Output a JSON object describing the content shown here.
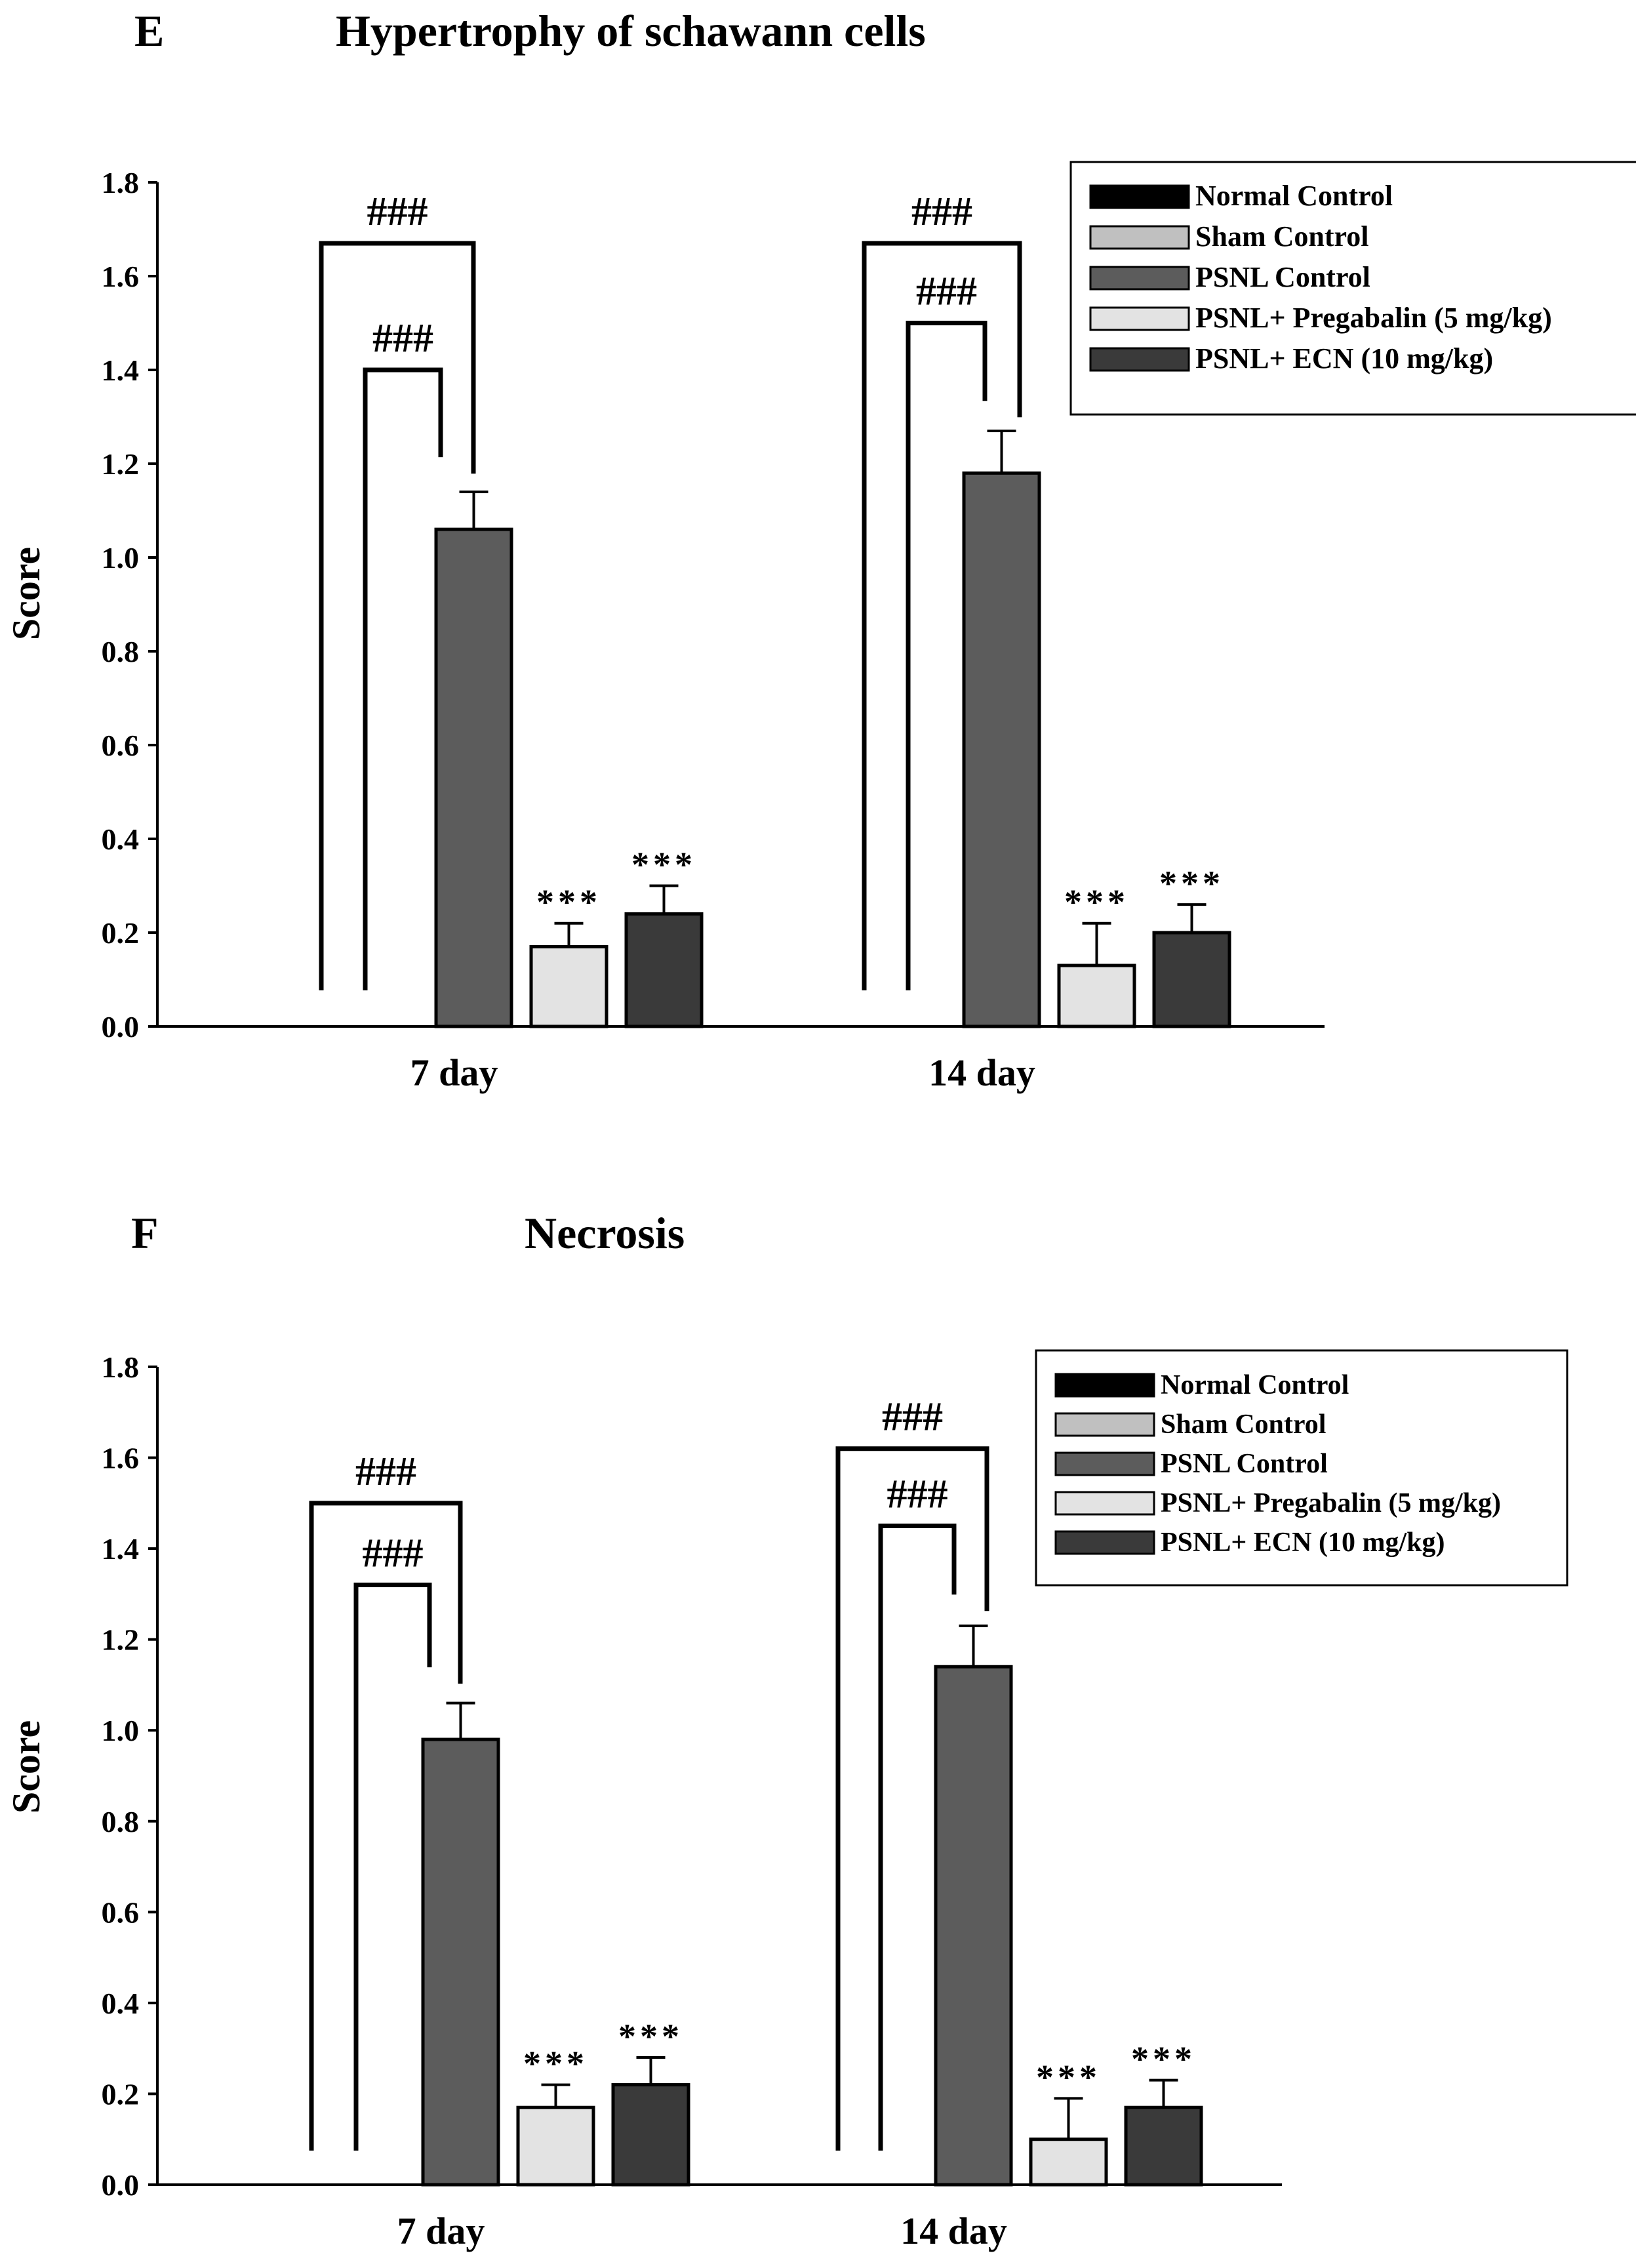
{
  "colors": {
    "normal_control": "#000000",
    "sham_control": "#c0c0c0",
    "psnl_control": "#5c5c5c",
    "pregabalin": "#e3e3e3",
    "ecn": "#3a3a3a"
  },
  "chart_data": [
    {
      "type": "bar",
      "panel_label": "E",
      "title": "Hypertrophy of schawann cells",
      "xlabel": "",
      "ylabel": "Score",
      "ylim": [
        0,
        1.8
      ],
      "yticks": [
        "0.0",
        "0.2",
        "0.4",
        "0.6",
        "0.8",
        "1.0",
        "1.2",
        "1.4",
        "1.6",
        "1.8"
      ],
      "categories": [
        "7 day",
        "14 day"
      ],
      "series": [
        {
          "name": "Normal Control",
          "values": [
            0,
            0
          ],
          "errors": [
            0,
            0
          ],
          "marks": [
            "",
            ""
          ]
        },
        {
          "name": "Sham Control",
          "values": [
            0,
            0
          ],
          "errors": [
            0,
            0
          ],
          "marks": [
            "",
            ""
          ]
        },
        {
          "name": "PSNL Control",
          "values": [
            1.06,
            1.18
          ],
          "errors": [
            0.08,
            0.09
          ],
          "marks": [
            "",
            ""
          ]
        },
        {
          "name": "PSNL+ Pregabalin (5 mg/kg)",
          "values": [
            0.17,
            0.13
          ],
          "errors": [
            0.05,
            0.09
          ],
          "marks": [
            "***",
            "***"
          ]
        },
        {
          "name": "PSNL+ ECN (10 mg/kg)",
          "values": [
            0.24,
            0.2
          ],
          "errors": [
            0.06,
            0.06
          ],
          "marks": [
            "***",
            "***"
          ]
        }
      ],
      "brackets": [
        {
          "category": 0,
          "level": 1.67,
          "label": "###"
        },
        {
          "category": 0,
          "level": 1.4,
          "label": "###"
        },
        {
          "category": 1,
          "level": 1.67,
          "label": "###"
        },
        {
          "category": 1,
          "level": 1.5,
          "label": "###"
        }
      ]
    },
    {
      "type": "bar",
      "panel_label": "F",
      "title": "Necrosis",
      "xlabel": "",
      "ylabel": "Score",
      "ylim": [
        0,
        1.8
      ],
      "yticks": [
        "0.0",
        "0.2",
        "0.4",
        "0.6",
        "0.8",
        "1.0",
        "1.2",
        "1.4",
        "1.6",
        "1.8"
      ],
      "categories": [
        "7 day",
        "14 day"
      ],
      "series": [
        {
          "name": "Normal Control",
          "values": [
            0,
            0
          ],
          "errors": [
            0,
            0
          ],
          "marks": [
            "",
            ""
          ]
        },
        {
          "name": "Sham Control",
          "values": [
            0,
            0
          ],
          "errors": [
            0,
            0
          ],
          "marks": [
            "",
            ""
          ]
        },
        {
          "name": "PSNL Control",
          "values": [
            0.98,
            1.14
          ],
          "errors": [
            0.08,
            0.09
          ],
          "marks": [
            "",
            ""
          ]
        },
        {
          "name": "PSNL+ Pregabalin (5 mg/kg)",
          "values": [
            0.17,
            0.1
          ],
          "errors": [
            0.05,
            0.09
          ],
          "marks": [
            "***",
            "***"
          ]
        },
        {
          "name": "PSNL+ ECN (10 mg/kg)",
          "values": [
            0.22,
            0.17
          ],
          "errors": [
            0.06,
            0.06
          ],
          "marks": [
            "***",
            "***"
          ]
        }
      ],
      "brackets": [
        {
          "category": 0,
          "level": 1.5,
          "label": "###"
        },
        {
          "category": 0,
          "level": 1.32,
          "label": "###"
        },
        {
          "category": 1,
          "level": 1.62,
          "label": "###"
        },
        {
          "category": 1,
          "level": 1.45,
          "label": "###"
        }
      ]
    }
  ]
}
